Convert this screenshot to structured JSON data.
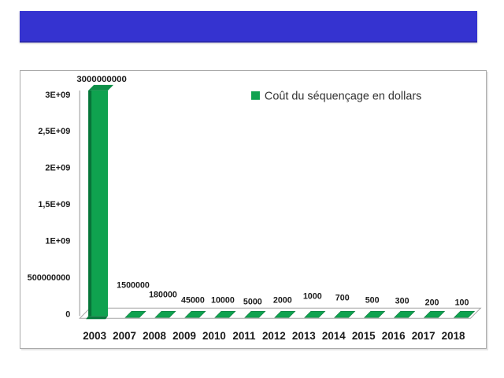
{
  "banner": {
    "color": "#3533d0"
  },
  "legend": {
    "label": "Coût du séquençage en dollars",
    "marker_color": "#0fa24f"
  },
  "chart_data": {
    "type": "bar",
    "style": "3d",
    "title": "",
    "xlabel": "",
    "ylabel": "",
    "categories": [
      "2003",
      "2007",
      "2008",
      "2009",
      "2010",
      "2011",
      "2012",
      "2013",
      "2014",
      "2015",
      "2016",
      "2017",
      "2018"
    ],
    "values": [
      3000000000,
      1500000,
      180000,
      45000,
      10000,
      5000,
      2000,
      1000,
      700,
      500,
      300,
      200,
      100
    ],
    "value_labels": [
      "3000000000",
      "1500000",
      "180000",
      "45000",
      "10000",
      "5000",
      "2000",
      "1000",
      "700",
      "500",
      "300",
      "200",
      "100"
    ],
    "series": [
      {
        "name": "Coût du séquençage en dollars",
        "values": [
          3000000000,
          1500000,
          180000,
          45000,
          10000,
          5000,
          2000,
          1000,
          700,
          500,
          300,
          200,
          100
        ]
      }
    ],
    "y_ticks_top_to_bottom": [
      "3E+09",
      "2,5E+09",
      "2E+09",
      "1,5E+09",
      "1E+09",
      "500000000",
      "0"
    ],
    "ylim": [
      0,
      3000000000
    ],
    "grid": false,
    "legend_position": "top-right",
    "bar_color": "#0fa24f",
    "bar_color_dark": "#077439",
    "bar_color_top": "#0b8e46",
    "bar_color_shadow": "#0a7a3e",
    "axis_color": "#a6a6a6",
    "text_color": "#1a1a1a"
  }
}
